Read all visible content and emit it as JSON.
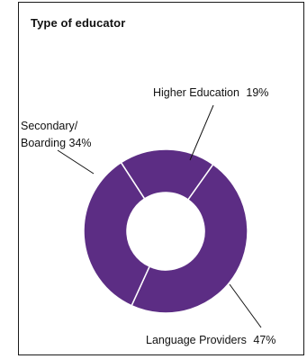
{
  "chart_data": {
    "type": "pie",
    "title": "Type of educator",
    "slices": [
      {
        "label": "Higher Education",
        "value": 19,
        "value_label": "19%"
      },
      {
        "label": "Language Providers",
        "value": 47,
        "value_label": "47%"
      },
      {
        "label": "Secondary/ Boarding",
        "value": 34,
        "value_label": "34%"
      }
    ],
    "donut": true,
    "colors": {
      "slice": "#5c2d84",
      "separator": "#ffffff"
    }
  }
}
